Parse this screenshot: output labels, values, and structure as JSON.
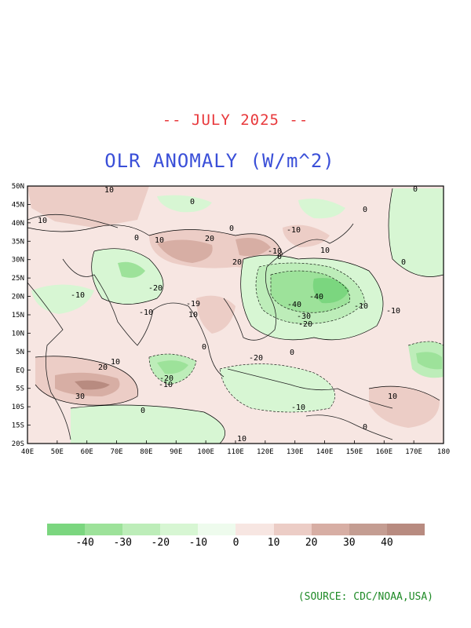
{
  "header": {
    "date_line": "-- JULY 2025 --",
    "title": "OLR ANOMALY (W/m^2)"
  },
  "map": {
    "lat_labels": [
      "50N",
      "45N",
      "40N",
      "35N",
      "30N",
      "25N",
      "20N",
      "15N",
      "10N",
      "5N",
      "EQ",
      "5S",
      "10S",
      "15S",
      "20S"
    ],
    "lon_labels": [
      "40E",
      "50E",
      "60E",
      "70E",
      "80E",
      "90E",
      "100E",
      "110E",
      "120E",
      "130E",
      "140E",
      "150E",
      "160E",
      "170E",
      "180"
    ],
    "contour_labels": [
      "10",
      "10",
      "0",
      "0",
      "0",
      "10",
      "20",
      "20",
      "-20",
      "-10",
      "-10",
      "0",
      "-10",
      "-19",
      "10",
      "10",
      "-10",
      "-40",
      "-40",
      "-30",
      "-20",
      "-10",
      "-10",
      "0",
      "-20",
      "-10",
      "-20",
      "20",
      "10",
      "30",
      "0",
      "10",
      "0",
      "0",
      "0",
      "10",
      "-10",
      "0",
      "0"
    ]
  },
  "legend": {
    "labels": [
      "-40",
      "-30",
      "-20",
      "-10",
      "0",
      "10",
      "20",
      "30",
      "40"
    ],
    "colors": [
      "#7bd67f",
      "#9de29a",
      "#bdedb9",
      "#d7f6d3",
      "#eefbed",
      "#f7e6e2",
      "#eccdc6",
      "#d7aea4",
      "#c49d92",
      "#b88b80"
    ]
  },
  "source": "(SOURCE: CDC/NOAA,USA)"
}
